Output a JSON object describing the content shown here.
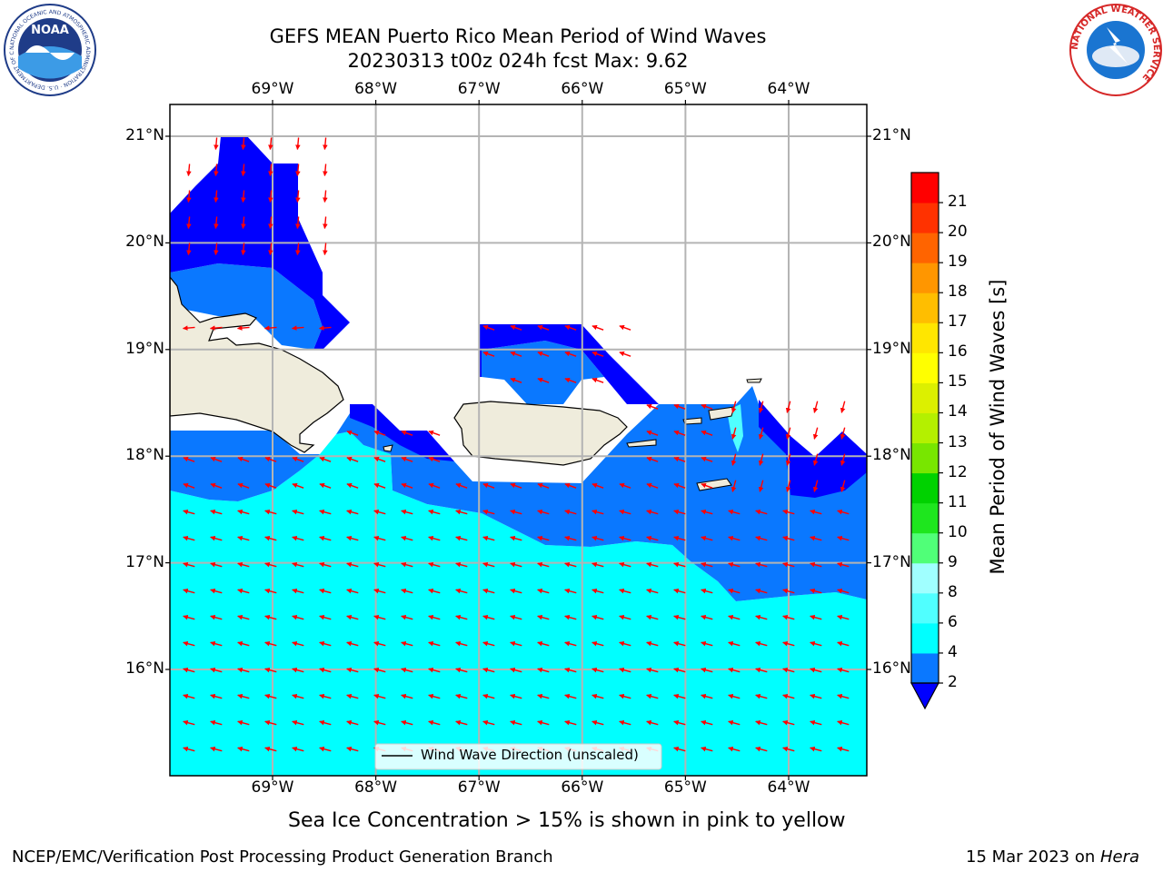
{
  "title": {
    "line1": "GEFS MEAN Puerto Rico Mean Period of Wind Waves",
    "line2": "20230313 t00z 024h fcst   Max: 9.62"
  },
  "map": {
    "lon_range": [
      -70.0,
      -63.25
    ],
    "lat_range": [
      15.0,
      21.3
    ],
    "lon_ticks": [
      {
        "value": -69,
        "label": "69°W"
      },
      {
        "value": -68,
        "label": "68°W"
      },
      {
        "value": -67,
        "label": "67°W"
      },
      {
        "value": -66,
        "label": "66°W"
      },
      {
        "value": -65,
        "label": "65°W"
      },
      {
        "value": -64,
        "label": "64°W"
      }
    ],
    "lat_ticks": [
      {
        "value": 21,
        "label": "21°N"
      },
      {
        "value": 20,
        "label": "20°N"
      },
      {
        "value": 19,
        "label": "19°N"
      },
      {
        "value": 18,
        "label": "18°N"
      },
      {
        "value": 17,
        "label": "17°N"
      },
      {
        "value": 16,
        "label": "16°N"
      }
    ],
    "grid": true,
    "land_color": "#efecdc",
    "arrow_color": "#ff0000",
    "legend_label": "Wind Wave Direction (unscaled)",
    "legend_placement": "bottom-center"
  },
  "colorbar": {
    "label": "Mean Period of Wind Waves [s]",
    "levels": [
      2,
      4,
      6,
      8,
      9,
      10,
      11,
      12,
      13,
      14,
      15,
      16,
      17,
      18,
      19,
      20,
      21
    ],
    "tick_labels": [
      "2",
      "4",
      "6",
      "8",
      "9",
      "10",
      "11",
      "12",
      "13",
      "14",
      "15",
      "16",
      "17",
      "18",
      "19",
      "20",
      "21"
    ],
    "colors": [
      "#0a78ff",
      "#00ffff",
      "#50ffff",
      "#a0ffff",
      "#50ff78",
      "#1ee61e",
      "#00d200",
      "#78e600",
      "#b4f000",
      "#dcf000",
      "#ffff00",
      "#ffe600",
      "#ffbe00",
      "#ff9600",
      "#ff6400",
      "#ff3200",
      "#ff0000"
    ],
    "under_color": "#0000ff"
  },
  "caption": "Sea Ice Concentration > 15% is shown in pink to yellow",
  "footer": {
    "left": "NCEP/EMC/Verification Post Processing Product Generation Branch",
    "right_prefix": "15 Mar 2023 on ",
    "right_machine": "Hera"
  },
  "logos": {
    "noaa": {
      "emblem_text": "NOAA",
      "ring_text": "NATIONAL OCEANIC AND ATMOSPHERIC ADMINISTRATION · U.S. DEPARTMENT OF COMMERCE"
    },
    "nws": {
      "ring_text": "NATIONAL WEATHER SERVICE"
    }
  }
}
